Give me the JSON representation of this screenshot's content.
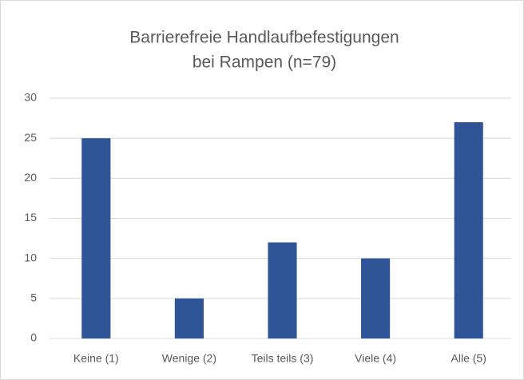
{
  "chart_data": {
    "type": "bar",
    "title": [
      "Barrierefreie Handlaufbefestigungen",
      "bei Rampen (n=79)"
    ],
    "categories": [
      "Keine (1)",
      "Wenige (2)",
      "Teils teils (3)",
      "Viele (4)",
      "Alle (5)"
    ],
    "values": [
      25,
      5,
      12,
      10,
      27
    ],
    "color": "#2f5597",
    "ylim": [
      0,
      30
    ],
    "yticks": [
      0,
      5,
      10,
      15,
      20,
      25,
      30
    ],
    "grid": true
  }
}
